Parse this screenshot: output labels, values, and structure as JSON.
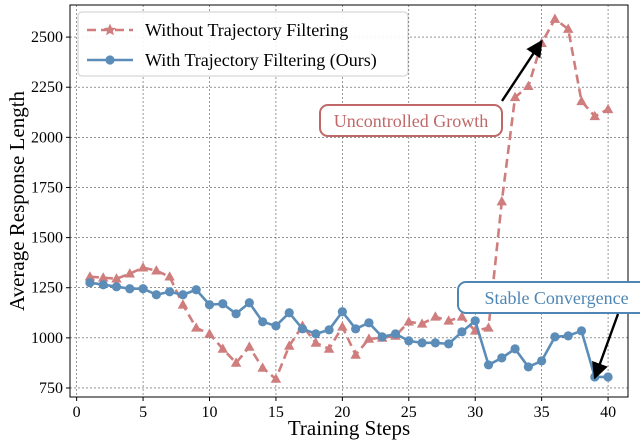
{
  "chart_data": {
    "type": "line",
    "title": "",
    "xlabel": "Training Steps",
    "ylabel": "Average Response Length",
    "xlim": [
      -0.5,
      41.5
    ],
    "ylim": [
      705,
      2660
    ],
    "xticks": [
      0,
      5,
      10,
      15,
      20,
      25,
      30,
      35,
      40
    ],
    "yticks": [
      750,
      1000,
      1250,
      1500,
      1750,
      2000,
      2250,
      2500
    ],
    "grid": true,
    "legend": "top-left",
    "series": [
      {
        "name": "Without Trajectory Filtering",
        "color": "#cf7d7d",
        "marker": "triangle",
        "linestyle": "dashed",
        "x": [
          1,
          2,
          3,
          4,
          5,
          6,
          7,
          8,
          9,
          10,
          11,
          12,
          13,
          14,
          15,
          16,
          17,
          18,
          19,
          20,
          21,
          22,
          23,
          24,
          25,
          26,
          27,
          28,
          29,
          30,
          31,
          32,
          33,
          34,
          35,
          36,
          37,
          38,
          39,
          40
        ],
        "y": [
          1305,
          1300,
          1295,
          1320,
          1350,
          1335,
          1305,
          1165,
          1050,
          1020,
          945,
          875,
          955,
          850,
          795,
          960,
          1060,
          975,
          945,
          1055,
          915,
          995,
          1000,
          1010,
          1080,
          1070,
          1105,
          1085,
          1105,
          1035,
          1050,
          1680,
          2200,
          2255,
          2470,
          2590,
          2540,
          2180,
          2105,
          2140
        ]
      },
      {
        "name": "With Trajectory Filtering (Ours)",
        "color": "#5b8db8",
        "marker": "circle",
        "linestyle": "solid",
        "x": [
          1,
          2,
          3,
          4,
          5,
          6,
          7,
          8,
          9,
          10,
          11,
          12,
          13,
          14,
          15,
          16,
          17,
          18,
          19,
          20,
          21,
          22,
          23,
          24,
          25,
          26,
          27,
          28,
          29,
          30,
          31,
          32,
          33,
          34,
          35,
          36,
          37,
          38,
          39,
          40
        ],
        "y": [
          1275,
          1265,
          1255,
          1245,
          1245,
          1215,
          1230,
          1215,
          1240,
          1165,
          1170,
          1120,
          1175,
          1080,
          1060,
          1125,
          1045,
          1020,
          1040,
          1130,
          1045,
          1075,
          1005,
          1020,
          985,
          975,
          975,
          970,
          1030,
          1085,
          865,
          900,
          945,
          855,
          885,
          1005,
          1010,
          1035,
          805,
          805
        ]
      }
    ],
    "annotations": [
      {
        "text": "Uncontrolled Growth",
        "color": "#c06868",
        "arrow_to": [
          35,
          2480
        ]
      },
      {
        "text": "Stable Convergence",
        "color": "#4f86b3",
        "arrow_to": [
          39,
          800
        ]
      }
    ]
  }
}
